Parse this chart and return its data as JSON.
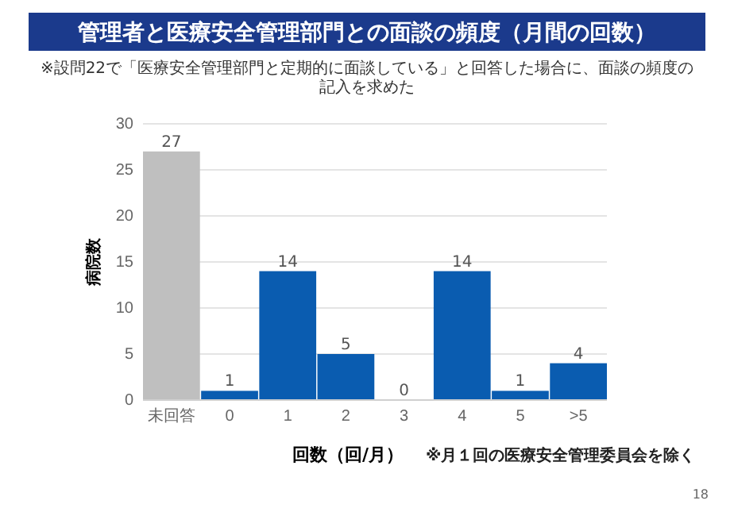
{
  "chart_data": {
    "type": "bar",
    "title": "管理者と医療安全管理部門との面談の頻度（月間の回数）",
    "subtitle": "※設問22で「医療安全管理部門と定期的に面談している」と回答した場合に、面談の頻度の記入を求めた",
    "xlabel": "回数（回/月）",
    "ylabel": "病院数",
    "categories": [
      "未回答",
      "0",
      "1",
      "2",
      "3",
      "4",
      "5",
      ">5"
    ],
    "values": [
      27,
      1,
      14,
      5,
      0,
      14,
      1,
      4
    ],
    "colors": [
      "#bfbfbf",
      "#0a5cb0",
      "#0a5cb0",
      "#0a5cb0",
      "#0a5cb0",
      "#0a5cb0",
      "#0a5cb0",
      "#0a5cb0"
    ],
    "ylim": [
      0,
      30
    ],
    "yticks": [
      0,
      5,
      10,
      15,
      20,
      25,
      30
    ],
    "grid": "y",
    "data_labels": true,
    "annotations": [
      "※月１回の医療安全管理委員会を除く",
      "18"
    ]
  }
}
